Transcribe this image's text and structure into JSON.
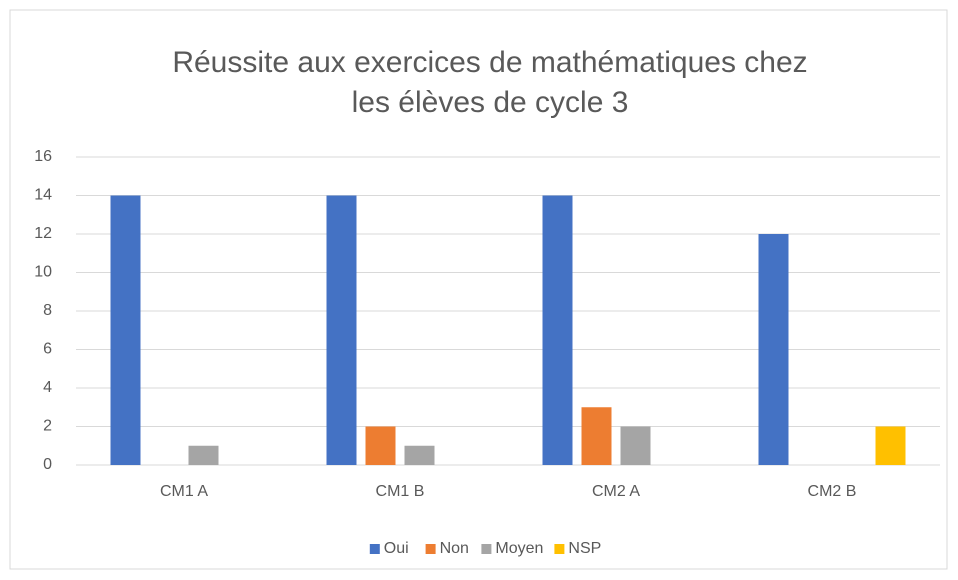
{
  "chart_data": {
    "type": "bar",
    "title": [
      "Réussite aux exercices de mathématiques chez",
      "les élèves de cycle 3"
    ],
    "categories": [
      "CM1 A",
      "CM1 B",
      "CM2 A",
      "CM2 B"
    ],
    "series": [
      {
        "name": "Oui",
        "color": "#4472c4",
        "values": [
          14,
          14,
          14,
          12
        ]
      },
      {
        "name": "Non",
        "color": "#ed7d31",
        "values": [
          0,
          2,
          3,
          0
        ]
      },
      {
        "name": "Moyen",
        "color": "#a5a5a5",
        "values": [
          1,
          1,
          2,
          0
        ]
      },
      {
        "name": "NSP",
        "color": "#ffc000",
        "values": [
          0,
          0,
          0,
          2
        ]
      }
    ],
    "ylim": [
      0,
      16
    ],
    "yticks": [
      0,
      2,
      4,
      6,
      8,
      10,
      12,
      14,
      16
    ],
    "grid": true,
    "legend": "bottom"
  }
}
